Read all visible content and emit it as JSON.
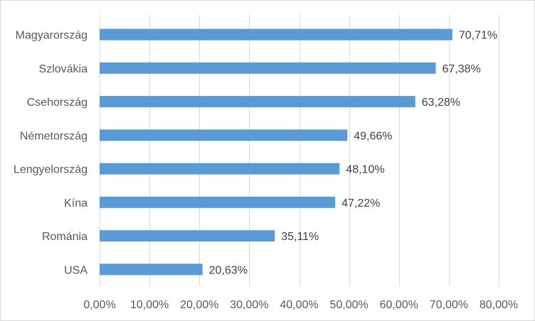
{
  "chart_data": {
    "type": "bar",
    "orientation": "horizontal",
    "categories": [
      "Magyarország",
      "Szlovákia",
      "Csehország",
      "Németország",
      "Lengyelország",
      "Kína",
      "Románia",
      "USA"
    ],
    "values": [
      70.71,
      67.38,
      63.28,
      49.66,
      48.1,
      47.22,
      35.11,
      20.63
    ],
    "value_labels": [
      "70,71%",
      "67,38%",
      "63,28%",
      "49,66%",
      "48,10%",
      "47,22%",
      "35,11%",
      "20,63%"
    ],
    "ticks": [
      0,
      10,
      20,
      30,
      40,
      50,
      60,
      70,
      80
    ],
    "tick_labels": [
      "0,00%",
      "10,00%",
      "20,00%",
      "30,00%",
      "40,00%",
      "50,00%",
      "60,00%",
      "70,00%",
      "80,00%"
    ],
    "xlim": [
      0,
      80
    ],
    "unit": "%",
    "title": "",
    "xlabel": "",
    "ylabel": "",
    "grid": "vertical",
    "legend": "none",
    "bar_color": "#5b9bd5",
    "grid_color": "#d9d9d9"
  }
}
